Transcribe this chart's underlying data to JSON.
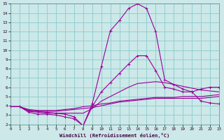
{
  "xlabel": "Windchill (Refroidissement éolien,°C)",
  "bg_color": "#cce8e8",
  "grid_color": "#88cccc",
  "line_color": "#990099",
  "xlim": [
    0,
    23
  ],
  "ylim": [
    2,
    15
  ],
  "xticks": [
    0,
    1,
    2,
    3,
    4,
    5,
    6,
    7,
    8,
    9,
    10,
    11,
    12,
    13,
    14,
    15,
    16,
    17,
    18,
    19,
    20,
    21,
    22,
    23
  ],
  "yticks": [
    2,
    3,
    4,
    5,
    6,
    7,
    8,
    9,
    10,
    11,
    12,
    13,
    14,
    15
  ],
  "lines": [
    {
      "x": [
        0,
        1,
        2,
        3,
        4,
        5,
        6,
        7,
        8,
        9,
        10,
        11,
        12,
        13,
        14,
        15,
        16,
        17,
        18,
        19,
        20,
        21,
        22,
        23
      ],
      "y": [
        3.9,
        3.9,
        3.3,
        3.1,
        3.1,
        3.0,
        2.8,
        2.6,
        1.85,
        3.9,
        5.5,
        6.5,
        7.5,
        8.5,
        9.4,
        9.4,
        7.8,
        6.0,
        5.8,
        5.5,
        5.5,
        5.8,
        6.0,
        6.0
      ],
      "marker": "+"
    },
    {
      "x": [
        0,
        1,
        2,
        3,
        4,
        5,
        6,
        7,
        8,
        9,
        10,
        11,
        12,
        13,
        14,
        15,
        16,
        17,
        18,
        19,
        20,
        21,
        22,
        23
      ],
      "y": [
        3.9,
        3.9,
        3.4,
        3.3,
        3.2,
        3.2,
        3.2,
        3.2,
        3.2,
        3.7,
        4.5,
        5.0,
        5.5,
        6.0,
        6.4,
        6.5,
        6.6,
        6.5,
        6.3,
        6.1,
        5.9,
        5.7,
        5.6,
        5.5
      ],
      "marker": null
    },
    {
      "x": [
        0,
        1,
        2,
        3,
        4,
        5,
        6,
        7,
        8,
        9,
        10,
        11,
        12,
        13,
        14,
        15,
        16,
        17,
        18,
        19,
        20,
        21,
        22,
        23
      ],
      "y": [
        3.9,
        3.9,
        3.5,
        3.4,
        3.4,
        3.4,
        3.5,
        3.6,
        3.7,
        3.8,
        4.0,
        4.2,
        4.4,
        4.5,
        4.6,
        4.7,
        4.8,
        4.8,
        4.8,
        4.8,
        4.8,
        4.8,
        4.9,
        5.0
      ],
      "marker": null
    },
    {
      "x": [
        0,
        1,
        2,
        3,
        4,
        5,
        6,
        7,
        8,
        9,
        10,
        11,
        12,
        13,
        14,
        15,
        16,
        17,
        18,
        19,
        20,
        21,
        22,
        23
      ],
      "y": [
        3.9,
        3.9,
        3.6,
        3.5,
        3.5,
        3.5,
        3.6,
        3.7,
        3.9,
        4.0,
        4.2,
        4.3,
        4.5,
        4.6,
        4.7,
        4.8,
        4.9,
        4.9,
        4.9,
        5.0,
        5.0,
        5.0,
        5.1,
        5.2
      ],
      "marker": null
    },
    {
      "x": [
        0,
        1,
        2,
        3,
        4,
        5,
        6,
        7,
        8,
        9,
        10,
        11,
        12,
        13,
        14,
        15,
        16,
        17,
        18,
        19,
        20,
        21,
        22,
        23
      ],
      "y": [
        3.9,
        3.9,
        3.5,
        3.4,
        3.3,
        3.2,
        3.1,
        2.8,
        1.85,
        4.2,
        8.2,
        12.1,
        13.2,
        14.5,
        15.0,
        14.5,
        12.0,
        6.8,
        6.3,
        5.8,
        5.5,
        4.5,
        4.3,
        4.2
      ],
      "marker": "+"
    }
  ]
}
